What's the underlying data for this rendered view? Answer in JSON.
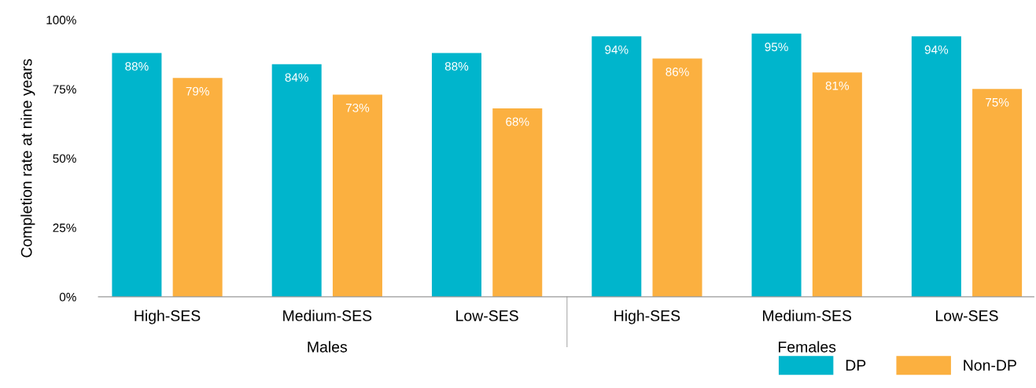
{
  "chart_data": {
    "type": "bar",
    "ylabel": "Completion rate at nine years",
    "categories": [
      "High-SES",
      "Medium-SES",
      "Low-SES",
      "High-SES",
      "Medium-SES",
      "Low-SES"
    ],
    "series": [
      {
        "name": "DP",
        "color": "#00b5cc",
        "values": [
          88,
          84,
          88,
          94,
          95,
          94
        ],
        "value_labels": [
          "88%",
          "84%",
          "88%",
          "94%",
          "95%",
          "94%"
        ]
      },
      {
        "name": "Non-DP",
        "color": "#fbb040",
        "values": [
          79,
          73,
          68,
          86,
          81,
          75
        ],
        "value_labels": [
          "79%",
          "73%",
          "68%",
          "86%",
          "81%",
          "75%"
        ]
      }
    ],
    "ylim": [
      0,
      100
    ],
    "yticks": [
      {
        "value": 0,
        "label": "0%"
      },
      {
        "value": 25,
        "label": "25%"
      },
      {
        "value": 50,
        "label": "50%"
      },
      {
        "value": 75,
        "label": "75%"
      },
      {
        "value": 100,
        "label": "100%"
      }
    ],
    "annotations": [
      "Males",
      "Females"
    ],
    "grid": false,
    "legend": "bottom right"
  }
}
